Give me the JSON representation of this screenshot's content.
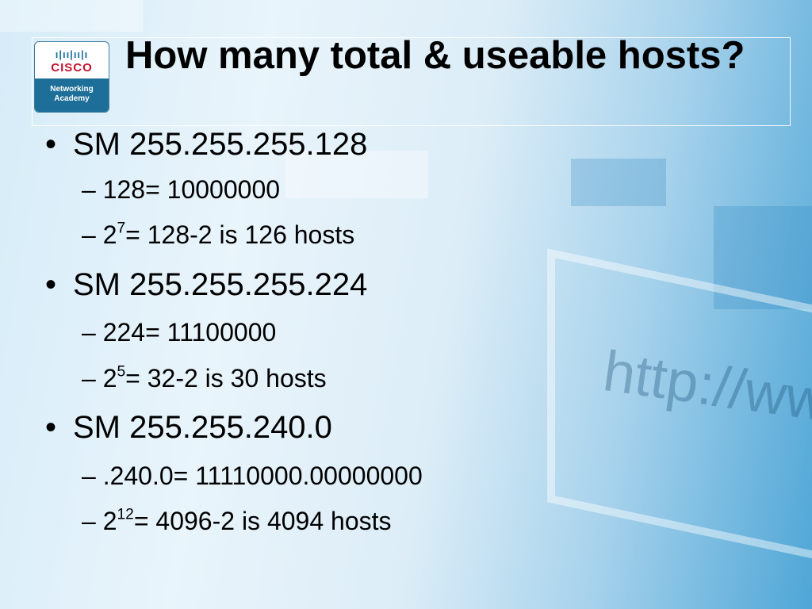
{
  "logo": {
    "brand": "CISCO",
    "line1": "Networking",
    "line2": "Academy"
  },
  "title": "How many total & useable hosts?",
  "bullets": [
    {
      "text": "SM 255.255.255.128",
      "subs": [
        {
          "pre": "128= 10000000"
        },
        {
          "base": "2",
          "exp": "7",
          "rest": "= 128-2 is 126 hosts"
        }
      ]
    },
    {
      "text": "SM 255.255.255.224",
      "subs": [
        {
          "pre": "224= 11100000"
        },
        {
          "base": "2",
          "exp": "5",
          "rest": "= 32-2 is 30 hosts"
        }
      ]
    },
    {
      "text": "SM 255.255.240.0",
      "subs": [
        {
          "pre": ".240.0= 11110000.00000000"
        },
        {
          "base": "2",
          "exp": "12",
          "rest": "= 4096-2 is 4094 hosts"
        }
      ]
    }
  ],
  "background_text": "http://www",
  "bullet_char": "•",
  "dash_char": "–"
}
